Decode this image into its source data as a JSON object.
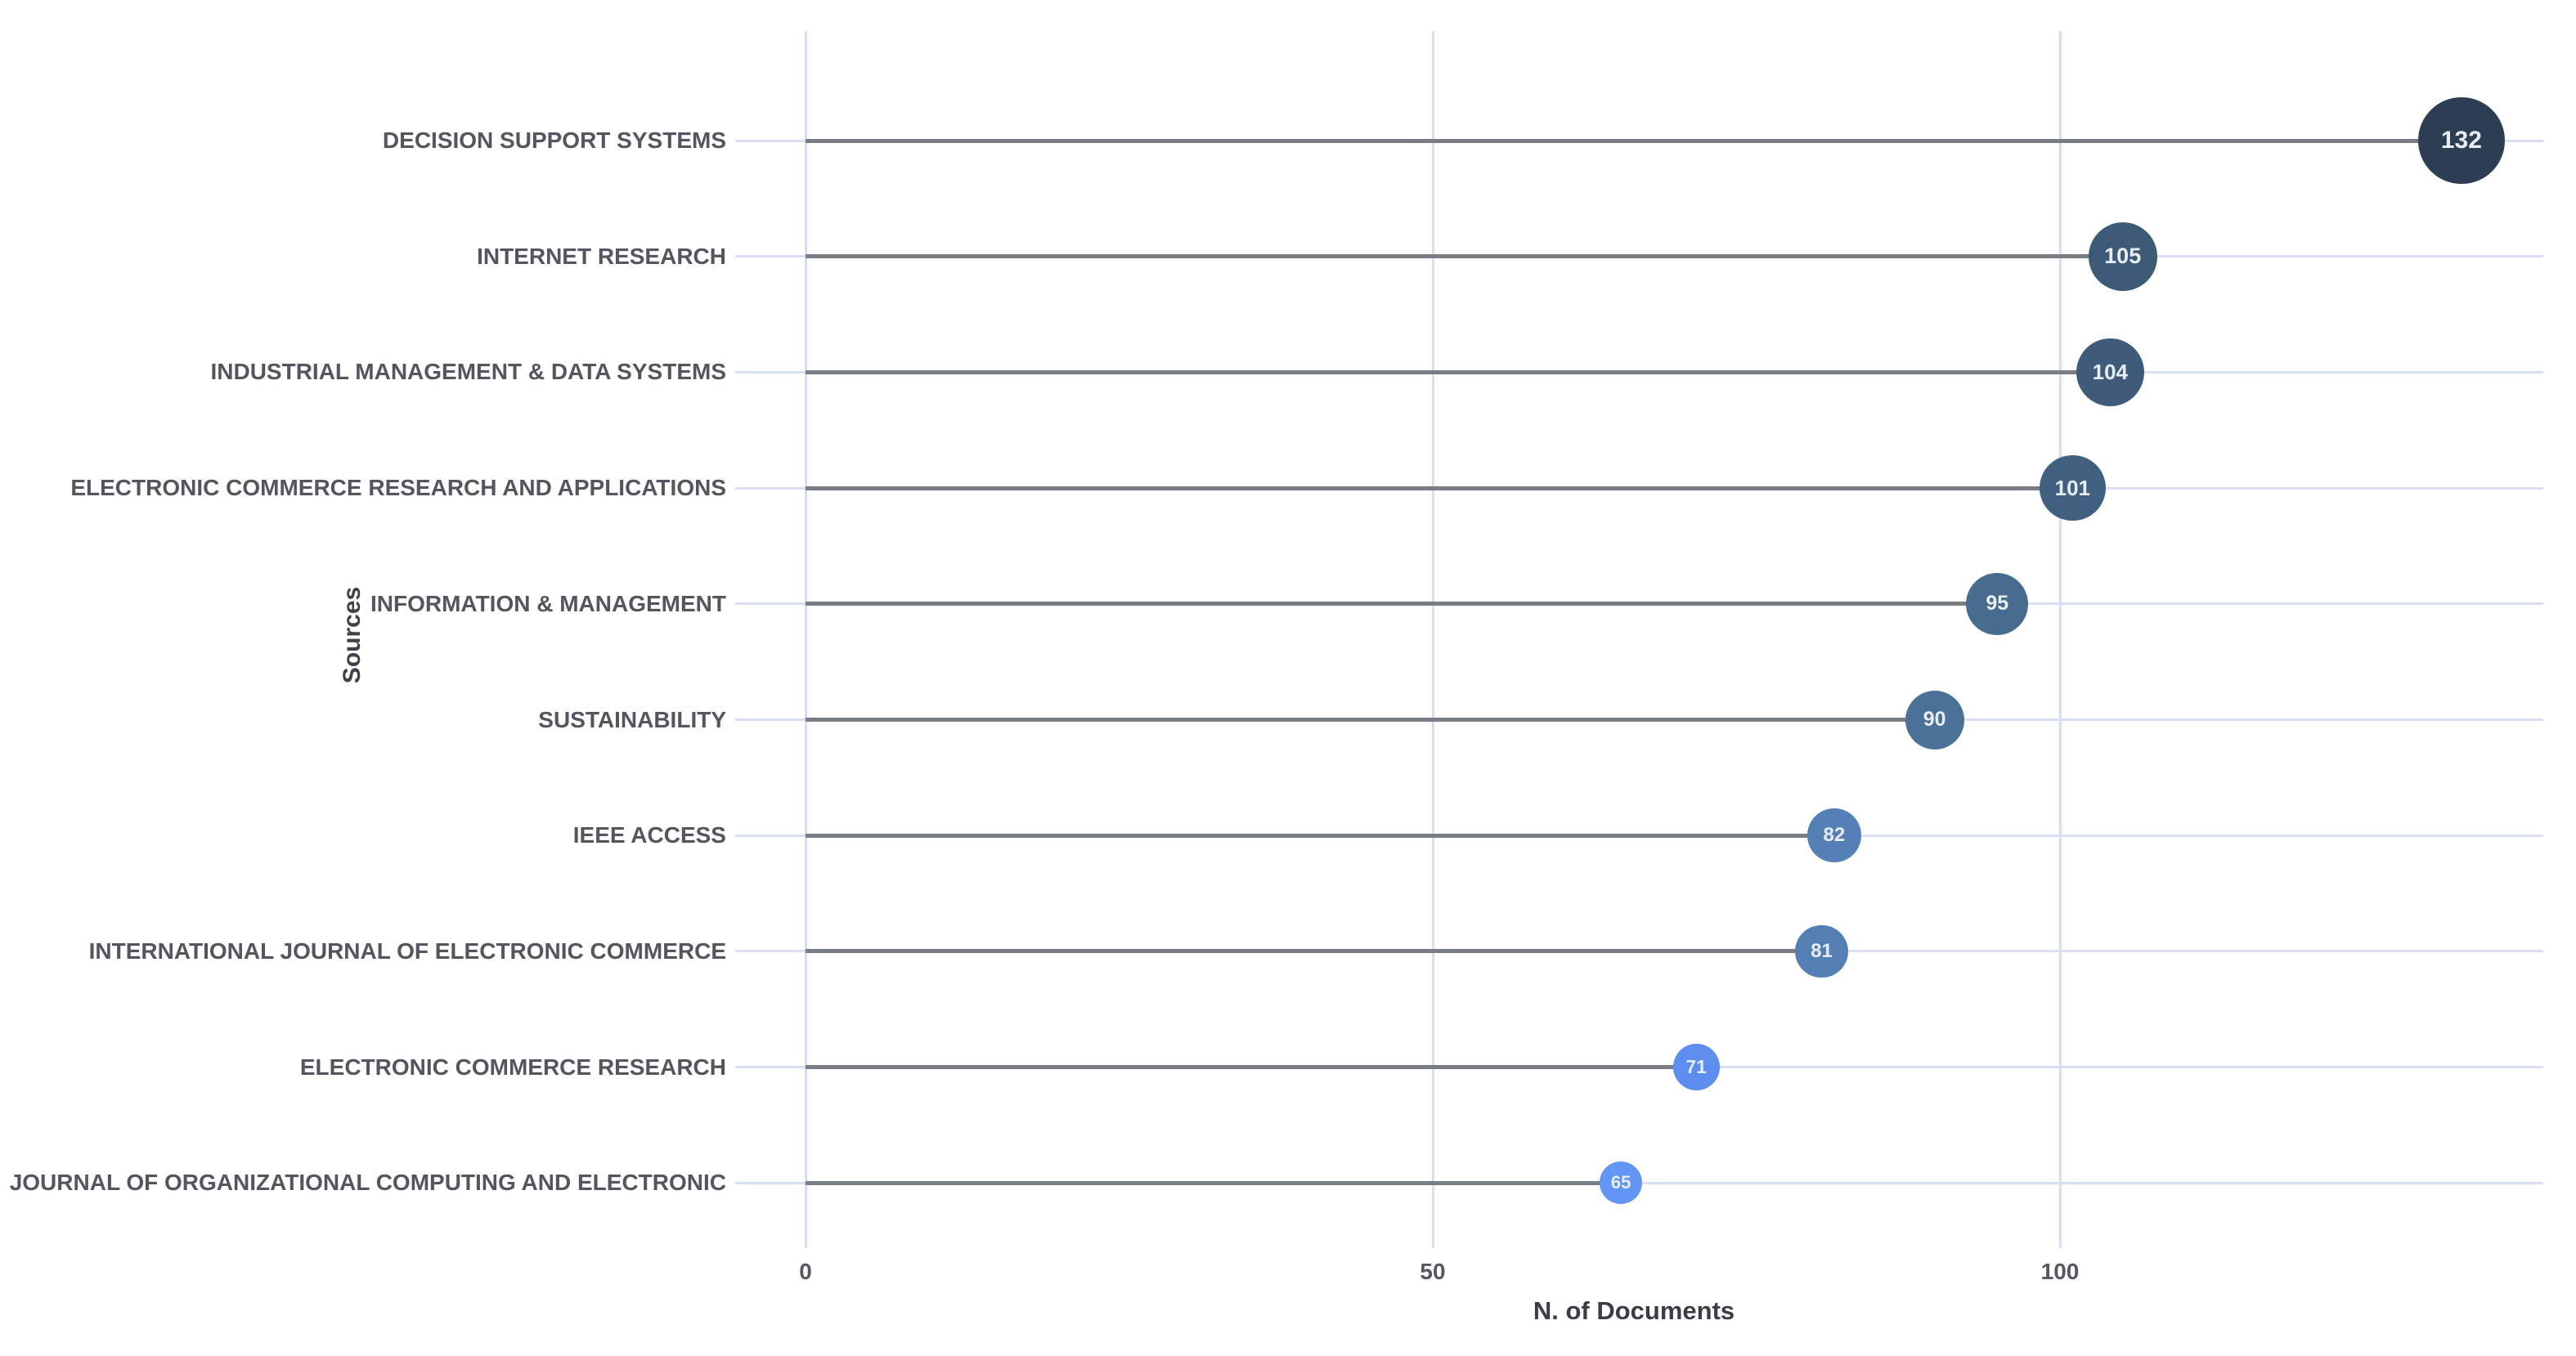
{
  "chart_data": {
    "type": "scatter",
    "variant": "horizontal-lollipop",
    "title": "",
    "xlabel": "N. of Documents",
    "ylabel": "Sources",
    "x_ticks": [
      0,
      50,
      100
    ],
    "x_tick_labels": [
      "0",
      "50",
      "100"
    ],
    "xlim": [
      -2,
      140
    ],
    "grid": true,
    "legend": false,
    "categories": [
      "DECISION SUPPORT SYSTEMS",
      "INTERNET RESEARCH",
      "INDUSTRIAL MANAGEMENT & DATA SYSTEMS",
      "ELECTRONIC COMMERCE RESEARCH AND APPLICATIONS",
      "INFORMATION & MANAGEMENT",
      "SUSTAINABILITY",
      "IEEE ACCESS",
      "INTERNATIONAL JOURNAL OF ELECTRONIC COMMERCE",
      "ELECTRONIC COMMERCE RESEARCH",
      "JOURNAL OF ORGANIZATIONAL COMPUTING AND ELECTRONIC"
    ],
    "values": [
      132,
      105,
      104,
      101,
      95,
      90,
      82,
      81,
      71,
      65
    ],
    "point_colors": [
      "#2d3e54",
      "#3d5a77",
      "#3e5c7a",
      "#416080",
      "#486c8d",
      "#4a7296",
      "#5580b5",
      "#547fb2",
      "#5c8def",
      "#6295f4"
    ],
    "stem_color": "#797d84",
    "gridline_color": "#d8dff5",
    "value_text_color": "#e8edf4",
    "category_label_color": "#54565f",
    "tick_label_color": "#555862",
    "axis_title_color": "#3b3d45"
  }
}
